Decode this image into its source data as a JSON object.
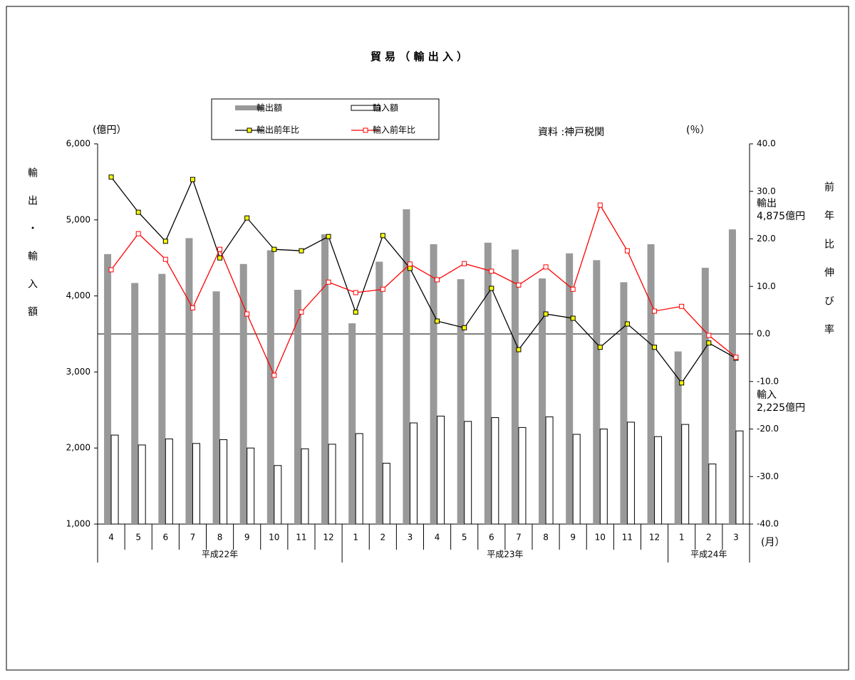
{
  "chart_data": {
    "type": "bar-line",
    "title": "貿 易 （ 輸 出 入 ）",
    "y_unit": "(億円）",
    "y2_unit": "(％）",
    "source": "資料 :神戸税関",
    "y_axis_label": "輸出・輸入額",
    "y2_axis_label": "前年比伸び率",
    "x_unit": "(月）",
    "category_groups": [
      {
        "name": "平成22年",
        "categories": [
          "4",
          "5",
          "6",
          "7",
          "8",
          "9",
          "10",
          "11",
          "12"
        ]
      },
      {
        "name": "平成23年",
        "categories": [
          "1",
          "2",
          "3",
          "4",
          "5",
          "6",
          "7",
          "8",
          "9",
          "10",
          "11",
          "12"
        ]
      },
      {
        "name": "平成24年",
        "categories": [
          "1",
          "2",
          "3"
        ]
      }
    ],
    "series": [
      {
        "name": "輸出額",
        "kind": "bar",
        "color": "#999999",
        "values": [
          4550,
          4170,
          4290,
          4760,
          4060,
          4420,
          4600,
          4080,
          4810,
          3640,
          4450,
          5140,
          4680,
          4220,
          4700,
          4610,
          4230,
          4560,
          4470,
          4180,
          4680,
          3270,
          4370,
          4875
        ]
      },
      {
        "name": "輸入額",
        "kind": "bar",
        "color": "#ffffff",
        "values": [
          2170,
          2040,
          2120,
          2060,
          2110,
          2000,
          1770,
          1990,
          2050,
          2190,
          1800,
          2330,
          2420,
          2350,
          2400,
          2270,
          2410,
          2180,
          2250,
          2340,
          2150,
          2310,
          1790,
          2225
        ]
      },
      {
        "name": "輸出前年比",
        "kind": "line",
        "axis": "y2",
        "color": "#000000",
        "marker_color": "#ffff00",
        "values": [
          33.0,
          25.6,
          19.5,
          32.5,
          16.0,
          24.4,
          17.8,
          17.5,
          20.5,
          4.6,
          20.7,
          13.8,
          2.7,
          1.3,
          9.6,
          -3.3,
          4.2,
          3.3,
          -2.8,
          2.1,
          -2.8,
          -10.3,
          -1.9,
          -5.1
        ]
      },
      {
        "name": "輸入前年比",
        "kind": "line",
        "axis": "y2",
        "color": "#ff0000",
        "marker_color": "#ffffff",
        "values": [
          13.5,
          21.1,
          15.7,
          5.5,
          17.8,
          4.2,
          -8.7,
          4.6,
          10.9,
          8.7,
          9.4,
          14.7,
          11.4,
          14.8,
          13.2,
          10.3,
          14.1,
          9.4,
          27.1,
          17.5,
          4.8,
          5.8,
          -0.3,
          -4.9
        ]
      }
    ],
    "ylim": [
      1000,
      6000
    ],
    "yticks": [
      {
        "value": 1000,
        "label": "1,000"
      },
      {
        "value": 2000,
        "label": "2,000"
      },
      {
        "value": 3000,
        "label": "3,000"
      },
      {
        "value": 4000,
        "label": "4,000"
      },
      {
        "value": 5000,
        "label": "5,000"
      },
      {
        "value": 6000,
        "label": "6,000"
      }
    ],
    "y2lim": [
      -40,
      40
    ],
    "y2ticks": [
      {
        "value": -40,
        "label": "-40.0"
      },
      {
        "value": -30,
        "label": "-30.0"
      },
      {
        "value": -20,
        "label": "-20.0"
      },
      {
        "value": -10,
        "label": "-10.0"
      },
      {
        "value": 0,
        "label": "0.0"
      },
      {
        "value": 10,
        "label": "10.0"
      },
      {
        "value": 20,
        "label": "20.0"
      },
      {
        "value": 30,
        "label": "30.0"
      },
      {
        "value": 40,
        "label": "40.0"
      }
    ],
    "annotations": [
      {
        "lines": [
          "輸出",
          "4,875億円"
        ]
      },
      {
        "lines": [
          "輸入",
          "2,225億円"
        ]
      }
    ]
  }
}
